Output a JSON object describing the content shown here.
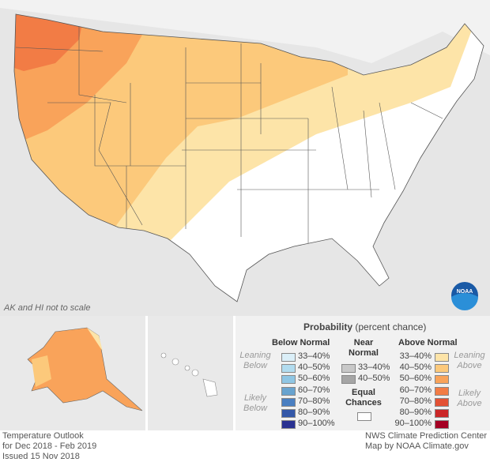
{
  "map_note": "AK and HI not to scale",
  "logo": "NOAA",
  "legend": {
    "title": "Probability",
    "subtitle": "(percent chance)",
    "below": {
      "header": "Below Normal",
      "leaning": "Leaning Below",
      "likely": "Likely Below",
      "items": [
        {
          "label": "33–40%",
          "color": "#dbeff8"
        },
        {
          "label": "40–50%",
          "color": "#b2dcef"
        },
        {
          "label": "50–60%",
          "color": "#8fc6e4"
        },
        {
          "label": "60–70%",
          "color": "#68a3cf"
        },
        {
          "label": "70–80%",
          "color": "#4a7fc1"
        },
        {
          "label": "80–90%",
          "color": "#3357a8"
        },
        {
          "label": "90–100%",
          "color": "#293191"
        }
      ]
    },
    "near": {
      "header1": "Near",
      "header2": "Normal",
      "items": [
        {
          "label": "33–40%",
          "color": "#c8c8c8"
        },
        {
          "label": "40–50%",
          "color": "#a5a5a5"
        }
      ]
    },
    "equal": {
      "label1": "Equal",
      "label2": "Chances",
      "color": "#ffffff"
    },
    "above": {
      "header": "Above Normal",
      "leaning": "Leaning Above",
      "likely": "Likely Above",
      "items": [
        {
          "label": "33–40%",
          "color": "#fde4a8"
        },
        {
          "label": "40–50%",
          "color": "#fcc97b"
        },
        {
          "label": "50–60%",
          "color": "#f9a35a"
        },
        {
          "label": "60–70%",
          "color": "#f27c45"
        },
        {
          "label": "70–80%",
          "color": "#e35134"
        },
        {
          "label": "80–90%",
          "color": "#cb2727"
        },
        {
          "label": "90–100%",
          "color": "#a50024"
        }
      ]
    }
  },
  "footer": {
    "left": [
      "Temperature Outlook",
      "for Dec 2018 - Feb 2019",
      "Issued 15 Nov 2018"
    ],
    "right": [
      "NWS Climate Prediction Center",
      "Map by NOAA Climate.gov"
    ]
  }
}
